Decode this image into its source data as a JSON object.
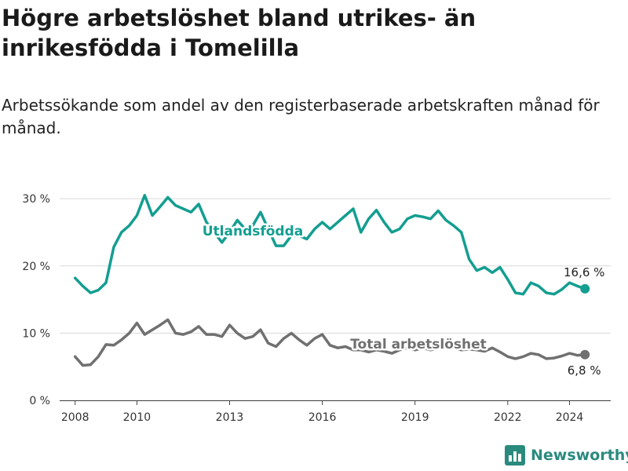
{
  "title": "Högre arbetslöshet bland utrikes- än inrikesfödda i Tomelilla",
  "subtitle": "Arbetssökande som andel av den registerbaserade arbetskraften månad för månad.",
  "brand": "Newsworthy",
  "colors": {
    "foreign": "#139e90",
    "total": "#707070",
    "grid": "#d9d9d9",
    "axis": "#444444",
    "brand": "#2a8a7e"
  },
  "chart_data": {
    "type": "line",
    "x_range": [
      "2007-07",
      "2025-05"
    ],
    "ylim": [
      0,
      32
    ],
    "y_ticks": [
      0,
      10,
      20,
      30
    ],
    "y_tick_labels": [
      "0 %",
      "10 %",
      "20 %",
      "30 %"
    ],
    "x_ticks": [
      2008,
      2010,
      2013,
      2016,
      2019,
      2022,
      2024
    ],
    "x_tick_labels": [
      "2008",
      "2010",
      "2013",
      "2016",
      "2019",
      "2022",
      "2024"
    ],
    "grid": "horizontal",
    "series": [
      {
        "name": "Utlandsfödda",
        "end_label": "16,6 %",
        "points": [
          [
            "2008-01",
            18.2
          ],
          [
            "2008-04",
            17.0
          ],
          [
            "2008-07",
            16.0
          ],
          [
            "2008-10",
            16.4
          ],
          [
            "2009-01",
            17.5
          ],
          [
            "2009-04",
            22.8
          ],
          [
            "2009-07",
            25.0
          ],
          [
            "2009-10",
            26.0
          ],
          [
            "2010-01",
            27.5
          ],
          [
            "2010-04",
            30.5
          ],
          [
            "2010-07",
            27.5
          ],
          [
            "2010-10",
            28.8
          ],
          [
            "2011-01",
            30.2
          ],
          [
            "2011-04",
            29.0
          ],
          [
            "2011-07",
            28.5
          ],
          [
            "2011-10",
            28.0
          ],
          [
            "2012-01",
            29.2
          ],
          [
            "2012-04",
            26.5
          ],
          [
            "2012-07",
            25.0
          ],
          [
            "2012-10",
            23.5
          ],
          [
            "2013-01",
            25.0
          ],
          [
            "2013-04",
            26.8
          ],
          [
            "2013-07",
            25.5
          ],
          [
            "2013-10",
            26.0
          ],
          [
            "2014-01",
            28.0
          ],
          [
            "2014-04",
            25.5
          ],
          [
            "2014-07",
            23.0
          ],
          [
            "2014-10",
            23.0
          ],
          [
            "2015-01",
            24.5
          ],
          [
            "2015-04",
            24.5
          ],
          [
            "2015-07",
            24.0
          ],
          [
            "2015-10",
            25.5
          ],
          [
            "2016-01",
            26.5
          ],
          [
            "2016-04",
            25.5
          ],
          [
            "2016-07",
            26.5
          ],
          [
            "2016-10",
            27.5
          ],
          [
            "2017-01",
            28.5
          ],
          [
            "2017-04",
            25.0
          ],
          [
            "2017-07",
            27.0
          ],
          [
            "2017-10",
            28.3
          ],
          [
            "2018-01",
            26.5
          ],
          [
            "2018-04",
            25.0
          ],
          [
            "2018-07",
            25.5
          ],
          [
            "2018-10",
            27.0
          ],
          [
            "2019-01",
            27.5
          ],
          [
            "2019-04",
            27.3
          ],
          [
            "2019-07",
            27.0
          ],
          [
            "2019-10",
            28.2
          ],
          [
            "2020-01",
            26.8
          ],
          [
            "2020-04",
            26.0
          ],
          [
            "2020-07",
            25.0
          ],
          [
            "2020-10",
            21.0
          ],
          [
            "2021-01",
            19.3
          ],
          [
            "2021-04",
            19.8
          ],
          [
            "2021-07",
            19.0
          ],
          [
            "2021-10",
            19.8
          ],
          [
            "2022-01",
            18.0
          ],
          [
            "2022-04",
            16.0
          ],
          [
            "2022-07",
            15.8
          ],
          [
            "2022-10",
            17.5
          ],
          [
            "2023-01",
            17.0
          ],
          [
            "2023-04",
            16.0
          ],
          [
            "2023-07",
            15.8
          ],
          [
            "2023-10",
            16.5
          ],
          [
            "2024-01",
            17.5
          ],
          [
            "2024-04",
            17.0
          ],
          [
            "2024-07",
            16.6
          ]
        ]
      },
      {
        "name": "Total arbetslöshet",
        "end_label": "6,8 %",
        "points": [
          [
            "2008-01",
            6.5
          ],
          [
            "2008-04",
            5.2
          ],
          [
            "2008-07",
            5.3
          ],
          [
            "2008-10",
            6.5
          ],
          [
            "2009-01",
            8.3
          ],
          [
            "2009-04",
            8.2
          ],
          [
            "2009-07",
            9.0
          ],
          [
            "2009-10",
            10.0
          ],
          [
            "2010-01",
            11.5
          ],
          [
            "2010-04",
            9.8
          ],
          [
            "2010-07",
            10.5
          ],
          [
            "2010-10",
            11.2
          ],
          [
            "2011-01",
            12.0
          ],
          [
            "2011-04",
            10.0
          ],
          [
            "2011-07",
            9.8
          ],
          [
            "2011-10",
            10.2
          ],
          [
            "2012-01",
            11.0
          ],
          [
            "2012-04",
            9.8
          ],
          [
            "2012-07",
            9.8
          ],
          [
            "2012-10",
            9.5
          ],
          [
            "2013-01",
            11.2
          ],
          [
            "2013-04",
            10.0
          ],
          [
            "2013-07",
            9.2
          ],
          [
            "2013-10",
            9.5
          ],
          [
            "2014-01",
            10.5
          ],
          [
            "2014-04",
            8.5
          ],
          [
            "2014-07",
            8.0
          ],
          [
            "2014-10",
            9.2
          ],
          [
            "2015-01",
            10.0
          ],
          [
            "2015-04",
            9.0
          ],
          [
            "2015-07",
            8.2
          ],
          [
            "2015-10",
            9.2
          ],
          [
            "2016-01",
            9.8
          ],
          [
            "2016-04",
            8.2
          ],
          [
            "2016-07",
            7.8
          ],
          [
            "2016-10",
            8.0
          ],
          [
            "2017-01",
            7.5
          ],
          [
            "2017-04",
            7.5
          ],
          [
            "2017-07",
            7.2
          ],
          [
            "2017-10",
            7.5
          ],
          [
            "2018-01",
            7.3
          ],
          [
            "2018-04",
            7.0
          ],
          [
            "2018-07",
            7.5
          ],
          [
            "2018-10",
            7.8
          ],
          [
            "2019-01",
            7.5
          ],
          [
            "2019-04",
            7.8
          ],
          [
            "2019-07",
            7.5
          ],
          [
            "2019-10",
            7.8
          ],
          [
            "2020-01",
            8.2
          ],
          [
            "2020-04",
            7.8
          ],
          [
            "2020-07",
            7.5
          ],
          [
            "2020-10",
            7.6
          ],
          [
            "2021-01",
            7.5
          ],
          [
            "2021-04",
            7.3
          ],
          [
            "2021-07",
            7.8
          ],
          [
            "2021-10",
            7.2
          ],
          [
            "2022-01",
            6.5
          ],
          [
            "2022-04",
            6.2
          ],
          [
            "2022-07",
            6.5
          ],
          [
            "2022-10",
            7.0
          ],
          [
            "2023-01",
            6.8
          ],
          [
            "2023-04",
            6.2
          ],
          [
            "2023-07",
            6.3
          ],
          [
            "2023-10",
            6.6
          ],
          [
            "2024-01",
            7.0
          ],
          [
            "2024-04",
            6.7
          ],
          [
            "2024-07",
            6.8
          ]
        ]
      }
    ]
  }
}
